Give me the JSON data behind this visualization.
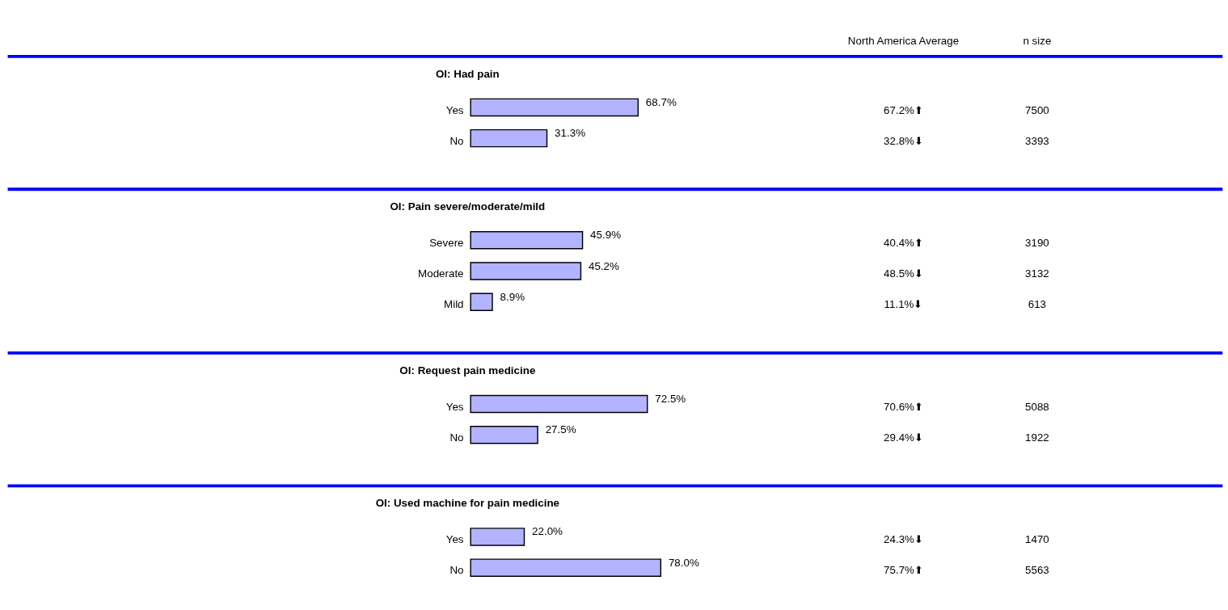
{
  "chart_data": [
    {
      "type": "bar",
      "orientation": "horizontal",
      "title": "OI: Had pain",
      "categories": [
        "Yes",
        "No"
      ],
      "values": [
        68.7,
        31.3
      ],
      "value_labels": [
        "68.7%",
        "31.3%"
      ],
      "color": "#b3b3ff",
      "tick_labels": false,
      "annotations": [
        "North America Average",
        "n size",
        "67.2%⬆",
        "7500",
        "32.8%⬇",
        "3393"
      ]
    },
    {
      "type": "bar",
      "orientation": "horizontal",
      "title": "OI: Pain severe/moderate/mild",
      "categories": [
        "Severe",
        "Moderate",
        "Mild"
      ],
      "values": [
        45.9,
        45.2,
        8.9
      ],
      "value_labels": [
        "45.9%",
        "45.2%",
        "8.9%"
      ],
      "color": "#b3b3ff",
      "tick_labels": false,
      "annotations": [
        "40.4%⬆",
        "3190",
        "48.5%⬇",
        "3132",
        "11.1%⬇",
        "613"
      ]
    },
    {
      "type": "bar",
      "orientation": "horizontal",
      "title": "OI: Request pain medicine",
      "categories": [
        "Yes",
        "No"
      ],
      "values": [
        72.5,
        27.5
      ],
      "value_labels": [
        "72.5%",
        "27.5%"
      ],
      "color": "#b3b3ff",
      "tick_labels": false,
      "annotations": [
        "70.6%⬆",
        "5088",
        "29.4%⬇",
        "1922"
      ]
    },
    {
      "type": "bar",
      "orientation": "horizontal",
      "title": "OI: Used machine for pain medicine",
      "categories": [
        "Yes",
        "No"
      ],
      "values": [
        22.0,
        78.0
      ],
      "value_labels": [
        "22.0%",
        "78.0%"
      ],
      "color": "#b3b3ff",
      "tick_labels": false,
      "annotations": [
        "24.3%⬇",
        "1470",
        "75.7%⬆",
        "5563"
      ]
    }
  ]
}
